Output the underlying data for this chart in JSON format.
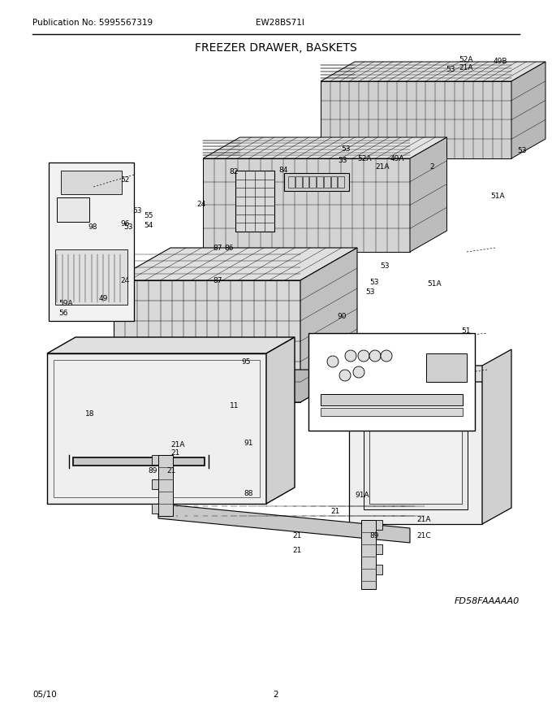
{
  "title": "FREEZER DRAWER, BASKETS",
  "pub_no": "Publication No: 5995567319",
  "model": "EW28BS71I",
  "date": "05/10",
  "page": "2",
  "diagram_id": "FD58FAAAAA0",
  "bg_color": "#ffffff",
  "line_color": "#000000",
  "text_color": "#000000",
  "title_fontsize": 10,
  "label_fontsize": 6.5,
  "header_fontsize": 7.5
}
